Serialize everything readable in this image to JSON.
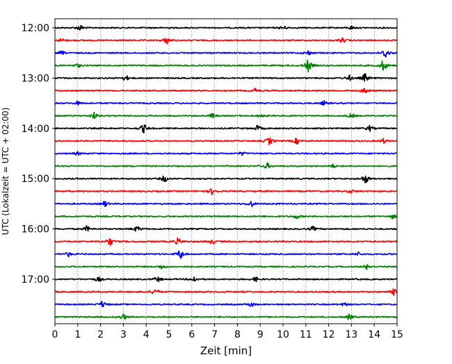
{
  "chart_data": {
    "type": "line",
    "title": "",
    "xlabel": "Zeit  [min]",
    "ylabel": "UTC (Lokalzeit = UTC + 02:00)",
    "xlim": [
      0,
      15
    ],
    "x_ticks": [
      0,
      1,
      2,
      3,
      4,
      5,
      6,
      7,
      8,
      9,
      10,
      11,
      12,
      13,
      14,
      15
    ],
    "x_tick_labels": [
      "0",
      "1",
      "2",
      "3",
      "4",
      "5",
      "6",
      "7",
      "8",
      "9",
      "10",
      "11",
      "12",
      "13",
      "14",
      "15"
    ],
    "y_tick_labels": [
      "12:00",
      "13:00",
      "14:00",
      "15:00",
      "16:00",
      "17:00"
    ],
    "y_tick_rows": [
      0,
      4,
      8,
      12,
      16,
      20
    ],
    "grid": "vertical dotted",
    "row_colors": [
      "#000000",
      "#ff0000",
      "#0000ff",
      "#008000"
    ],
    "series": [
      {
        "start": "12:00",
        "events": [
          [
            1.1,
            0.5
          ],
          [
            10.0,
            0.4
          ],
          [
            13.0,
            0.3
          ]
        ]
      },
      {
        "start": "12:15",
        "events": [
          [
            0.3,
            0.3
          ],
          [
            4.9,
            0.6
          ],
          [
            12.6,
            0.4
          ]
        ]
      },
      {
        "start": "12:30",
        "events": [
          [
            0.3,
            0.3
          ],
          [
            11.1,
            0.4
          ],
          [
            14.5,
            1.0
          ]
        ]
      },
      {
        "start": "12:45",
        "events": [
          [
            1.0,
            0.3
          ],
          [
            11.1,
            1.2
          ],
          [
            14.4,
            1.0
          ]
        ]
      },
      {
        "start": "13:00",
        "events": [
          [
            3.1,
            0.5
          ],
          [
            12.9,
            0.5
          ],
          [
            13.6,
            0.8
          ]
        ]
      },
      {
        "start": "13:15",
        "events": [
          [
            8.8,
            0.4
          ],
          [
            13.6,
            0.6
          ]
        ]
      },
      {
        "start": "13:30",
        "events": [
          [
            1.0,
            0.3
          ],
          [
            11.8,
            0.4
          ]
        ]
      },
      {
        "start": "13:45",
        "events": [
          [
            1.7,
            0.6
          ],
          [
            6.9,
            0.4
          ],
          [
            9.0,
            0.3
          ],
          [
            13.0,
            0.4
          ]
        ]
      },
      {
        "start": "14:00",
        "events": [
          [
            3.9,
            0.8
          ],
          [
            8.9,
            0.5
          ],
          [
            13.8,
            0.5
          ]
        ]
      },
      {
        "start": "14:15",
        "events": [
          [
            9.4,
            0.7
          ],
          [
            10.6,
            0.5
          ],
          [
            14.4,
            0.4
          ]
        ]
      },
      {
        "start": "14:30",
        "events": [
          [
            1.0,
            0.3
          ],
          [
            8.2,
            0.3
          ]
        ]
      },
      {
        "start": "14:45",
        "events": [
          [
            9.3,
            0.5
          ],
          [
            12.2,
            0.3
          ]
        ]
      },
      {
        "start": "15:00",
        "events": [
          [
            4.8,
            0.6
          ],
          [
            13.6,
            0.9
          ]
        ]
      },
      {
        "start": "15:15",
        "events": [
          [
            6.9,
            0.6
          ],
          [
            13.0,
            0.3
          ]
        ]
      },
      {
        "start": "15:30",
        "events": [
          [
            2.2,
            0.5
          ],
          [
            8.6,
            0.5
          ]
        ]
      },
      {
        "start": "15:45",
        "events": [
          [
            10.6,
            0.4
          ],
          [
            14.8,
            0.4
          ]
        ]
      },
      {
        "start": "16:00",
        "events": [
          [
            1.4,
            0.5
          ],
          [
            3.6,
            0.5
          ],
          [
            11.3,
            0.4
          ]
        ]
      },
      {
        "start": "16:15",
        "events": [
          [
            2.4,
            0.8
          ],
          [
            5.4,
            0.6
          ],
          [
            6.9,
            0.4
          ]
        ]
      },
      {
        "start": "16:30",
        "events": [
          [
            0.6,
            0.4
          ],
          [
            5.5,
            0.9
          ],
          [
            13.3,
            0.3
          ]
        ]
      },
      {
        "start": "16:45",
        "events": [
          [
            4.7,
            0.4
          ],
          [
            13.7,
            0.5
          ]
        ]
      },
      {
        "start": "17:00",
        "events": [
          [
            1.9,
            0.4
          ],
          [
            4.5,
            0.5
          ],
          [
            6.1,
            0.5
          ],
          [
            8.8,
            0.4
          ]
        ]
      },
      {
        "start": "17:15",
        "events": [
          [
            4.4,
            0.6
          ],
          [
            14.9,
            0.7
          ]
        ]
      },
      {
        "start": "17:30",
        "events": [
          [
            2.1,
            0.6
          ],
          [
            8.6,
            0.4
          ],
          [
            12.7,
            0.3
          ]
        ]
      },
      {
        "start": "17:45",
        "events": [
          [
            3.0,
            0.5
          ],
          [
            12.9,
            0.5
          ]
        ]
      }
    ]
  }
}
